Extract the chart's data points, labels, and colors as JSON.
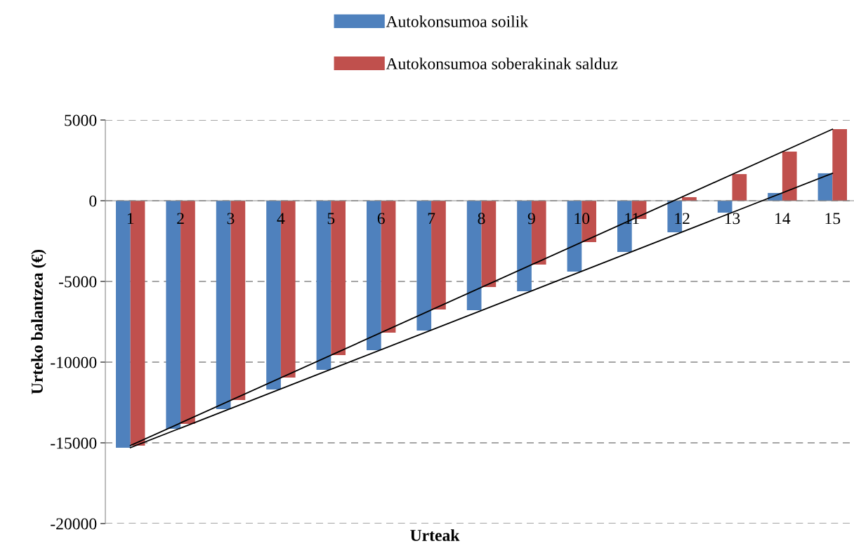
{
  "chart_data": {
    "type": "bar",
    "xlabel": "Urteak",
    "ylabel": "Urteko balantzea (€)",
    "categories": [
      "1",
      "2",
      "3",
      "4",
      "5",
      "6",
      "7",
      "8",
      "9",
      "10",
      "11",
      "12",
      "13",
      "14",
      "15"
    ],
    "series": [
      {
        "name": "Autokonsumoa soilik",
        "color": "#4f81bd",
        "values": [
          -15300,
          -14130,
          -12910,
          -11700,
          -10480,
          -9260,
          -8040,
          -6780,
          -5610,
          -4390,
          -3170,
          -1960,
          -740,
          480,
          1700
        ]
      },
      {
        "name": "Autokonsumoa soberakinak salduz",
        "color": "#c0504d",
        "values": [
          -15170,
          -13830,
          -12350,
          -10960,
          -9570,
          -8170,
          -6740,
          -5350,
          -3960,
          -2570,
          -1130,
          220,
          1650,
          3040,
          4430
        ]
      },
      {
        "type": "line",
        "color": "#000000",
        "x": [
          "1",
          "15"
        ],
        "values": [
          -15300,
          1700
        ]
      },
      {
        "type": "line",
        "color": "#000000",
        "x": [
          "1",
          "15"
        ],
        "values": [
          -15170,
          4430
        ]
      }
    ],
    "ylim": [
      -20000,
      5000
    ],
    "yticks": [
      -20000,
      -15000,
      -10000,
      -5000,
      0,
      5000
    ],
    "grid": "y",
    "legend": "top"
  }
}
